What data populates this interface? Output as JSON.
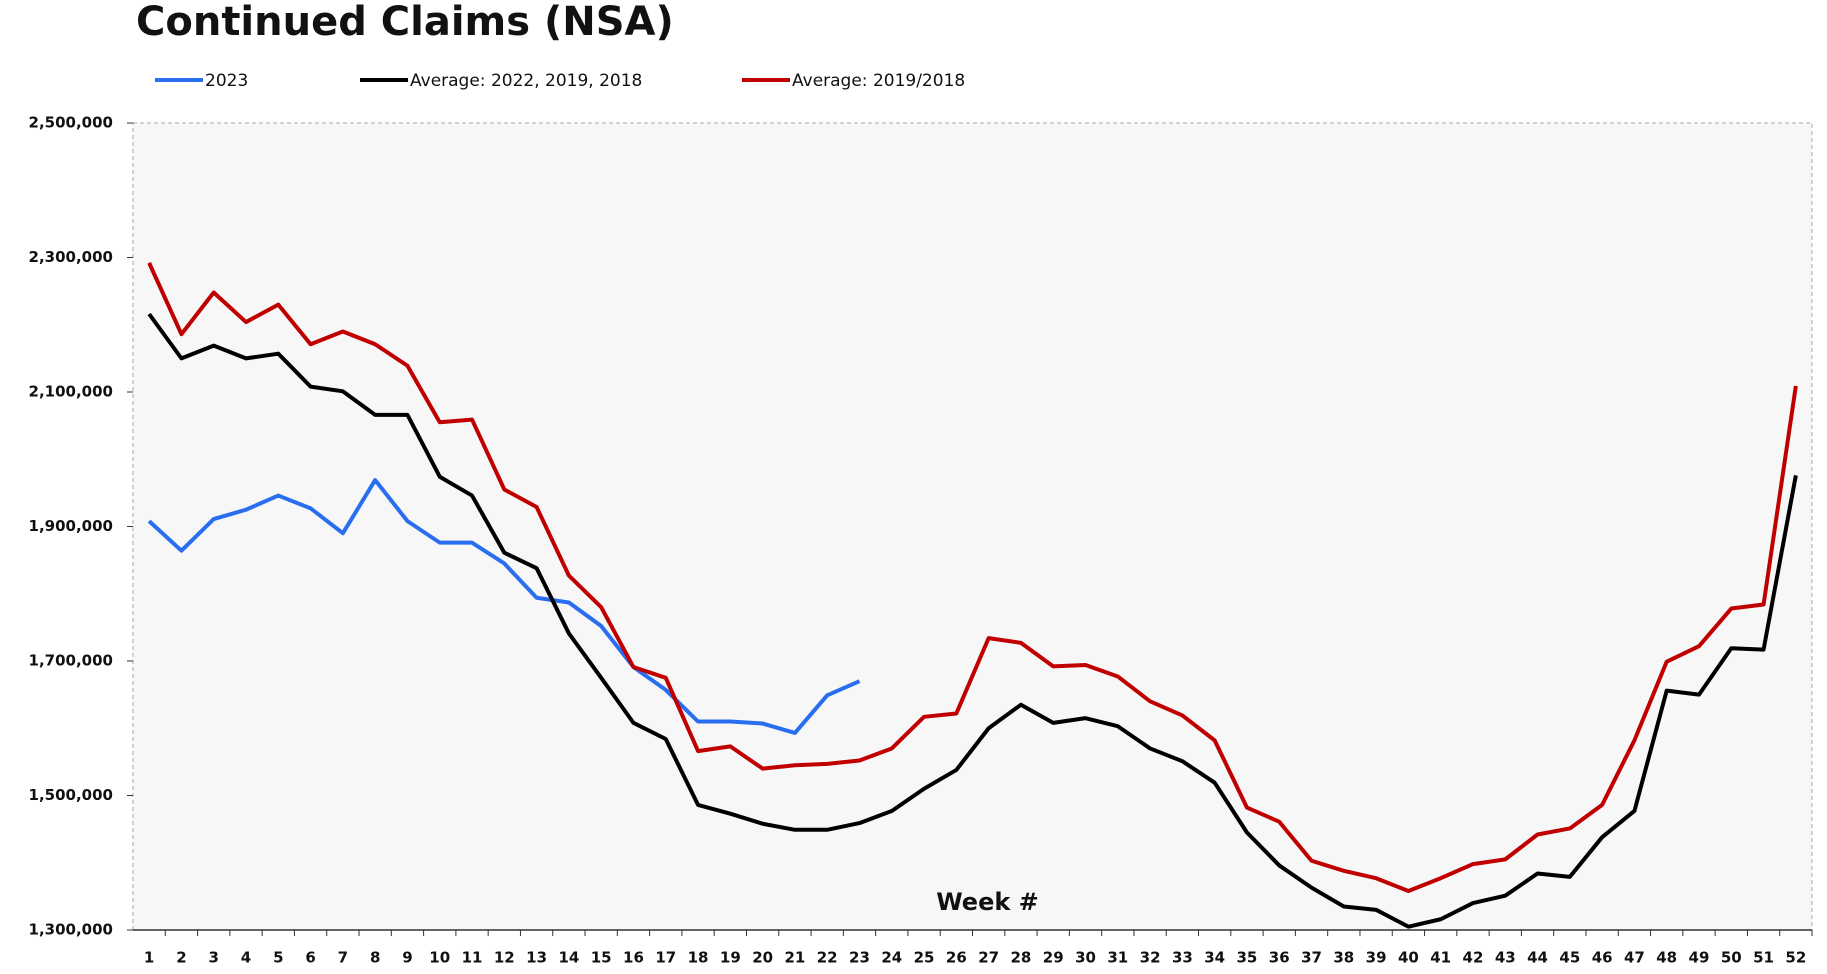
{
  "chart_data": {
    "type": "line",
    "title": "Continued Claims (NSA)",
    "x_label": "Week #",
    "categories": [
      "1",
      "2",
      "3",
      "4",
      "5",
      "6",
      "7",
      "8",
      "9",
      "10",
      "11",
      "12",
      "13",
      "14",
      "15",
      "16",
      "17",
      "18",
      "19",
      "20",
      "21",
      "22",
      "23",
      "24",
      "25",
      "26",
      "27",
      "28",
      "29",
      "30",
      "31",
      "32",
      "33",
      "34",
      "35",
      "36",
      "37",
      "38",
      "39",
      "40",
      "41",
      "42",
      "43",
      "44",
      "45",
      "46",
      "47",
      "48",
      "49",
      "50",
      "51",
      "52"
    ],
    "series": [
      {
        "name": "2023",
        "color": "#2a6ef0",
        "values": [
          1908000,
          1864000,
          1911000,
          1925000,
          1946000,
          1927000,
          1890000,
          1969000,
          1908000,
          1876000,
          1876000,
          1845000,
          1794000,
          1787000,
          1752000,
          1691000,
          1657000,
          1610000,
          1610000,
          1607000,
          1593000,
          1649000,
          1670000,
          null,
          null,
          null,
          null,
          null,
          null,
          null,
          null,
          null,
          null,
          null,
          null,
          null,
          null,
          null,
          null,
          null,
          null,
          null,
          null,
          null,
          null,
          null,
          null,
          null,
          null,
          null,
          null,
          null
        ]
      },
      {
        "name": "Average: 2022, 2019, 2018",
        "color": "#000000",
        "values": [
          2216000,
          2150000,
          2169000,
          2150000,
          2157000,
          2108000,
          2101000,
          2066000,
          2066000,
          1974000,
          1946000,
          1861000,
          1838000,
          1741000,
          1675000,
          1608000,
          1584000,
          1486000,
          1473000,
          1458000,
          1449000,
          1449000,
          1459000,
          1477000,
          1510000,
          1538000,
          1600000,
          1635000,
          1608000,
          1615000,
          1603000,
          1570000,
          1551000,
          1519000,
          1445000,
          1396000,
          1363000,
          1335000,
          1330000,
          1305000,
          1316000,
          1340000,
          1351000,
          1384000,
          1379000,
          1438000,
          1477000,
          1656000,
          1650000,
          1719000,
          1717000,
          1976000
        ]
      },
      {
        "name": "Average: 2019/2018",
        "color": "#c00000",
        "values": [
          2292000,
          2186000,
          2248000,
          2204000,
          2230000,
          2171000,
          2190000,
          2171000,
          2139000,
          2055000,
          2059000,
          1955000,
          1929000,
          1827000,
          1780000,
          1691000,
          1675000,
          1566000,
          1573000,
          1540000,
          1545000,
          1547000,
          1552000,
          1570000,
          1617000,
          1622000,
          1734000,
          1727000,
          1692000,
          1694000,
          1677000,
          1640000,
          1619000,
          1582000,
          1482000,
          1461000,
          1403000,
          1388000,
          1377000,
          1358000,
          1377000,
          1398000,
          1405000,
          1442000,
          1451000,
          1486000,
          1582000,
          1699000,
          1722000,
          1778000,
          1784000,
          2109000
        ]
      }
    ],
    "ylim": [
      1300000,
      2500000
    ],
    "yticks": [
      {
        "value": 1300000,
        "label": "1,300,000"
      },
      {
        "value": 1500000,
        "label": "1,500,000"
      },
      {
        "value": 1700000,
        "label": "1,700,000"
      },
      {
        "value": 1900000,
        "label": "1,900,000"
      },
      {
        "value": 2100000,
        "label": "2,100,000"
      },
      {
        "value": 2300000,
        "label": "2,300,000"
      },
      {
        "value": 2500000,
        "label": "2,500,000"
      }
    ],
    "grid": false,
    "legend": "top"
  }
}
